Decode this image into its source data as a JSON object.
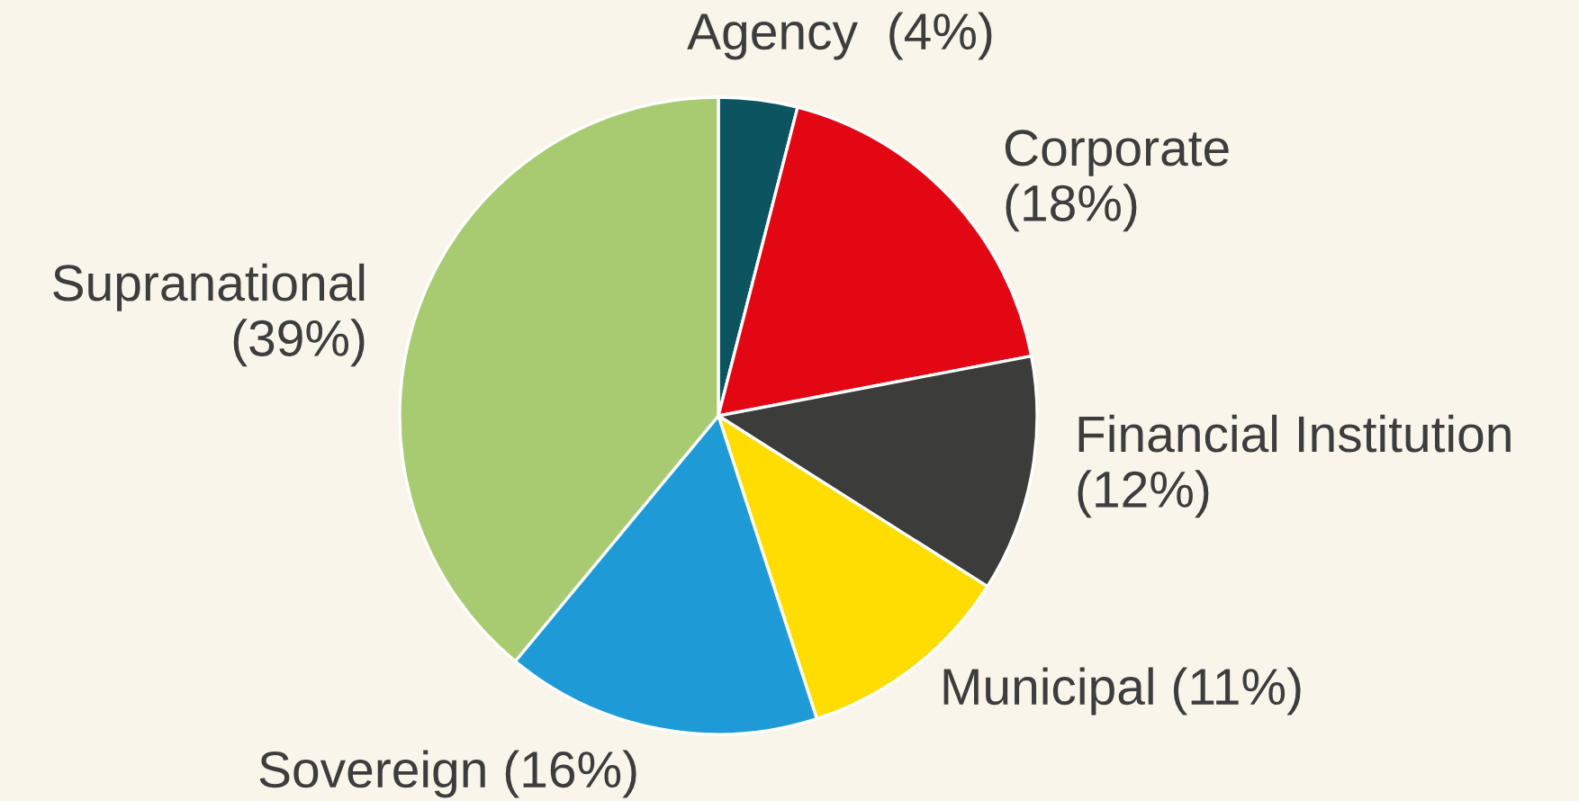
{
  "chart_data": {
    "type": "pie",
    "categories": [
      "Agency",
      "Corporate",
      "Financial Institution",
      "Municipal",
      "Sovereign",
      "Supranational"
    ],
    "values": [
      4,
      18,
      12,
      11,
      16,
      39
    ],
    "colors": [
      "#0d5461",
      "#e30613",
      "#3c3c3b",
      "#ffdd00",
      "#1e9bd7",
      "#a8cb72"
    ],
    "value_labels": [
      "(4%)",
      "(18%)",
      "(12%)",
      "(11%)",
      "(16%)",
      "(39%)"
    ]
  }
}
